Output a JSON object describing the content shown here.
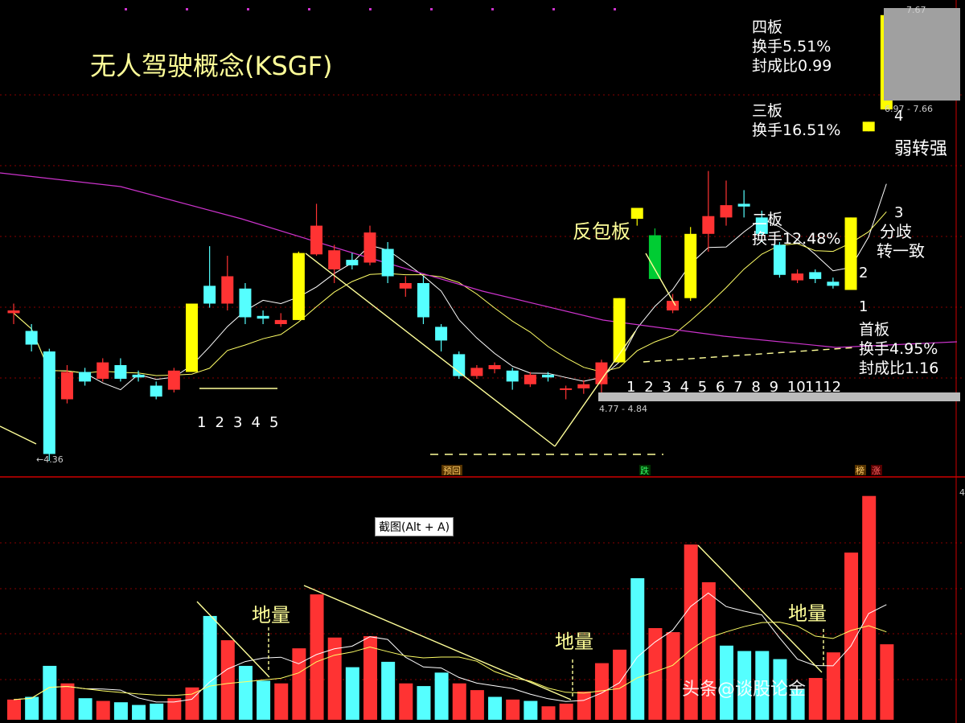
{
  "title": "无人驾驶概念(KSGF)",
  "tooltip": "截图(Alt + A)",
  "watermark": "头条@谈股论金",
  "price_labels": {
    "low": "←4.36",
    "range1": "4.77 - 4.84",
    "range2": "6.97 - 7.66",
    "top": "7.67"
  },
  "markers": {
    "yuhui": "预回",
    "die": "跌",
    "bang": "榜",
    "zhang": "涨"
  },
  "annotations": {
    "fanbaoban": "反包板",
    "ruozhuanqiang": "弱转强",
    "fenqi": "分歧",
    "zhuanyizhi": "转一致",
    "diliang1": "地量",
    "diliang2": "地量",
    "diliang3": "地量",
    "board4": [
      "四板",
      "换手5.51%",
      "封成比0.99"
    ],
    "board3": [
      "三板",
      "换手16.51%"
    ],
    "board2": [
      "二板",
      "换手12.48%"
    ],
    "board1": [
      "首板",
      "换手4.95%",
      "封成比1.16"
    ]
  },
  "left_counts": [
    "1",
    "2",
    "3",
    "4",
    "5"
  ],
  "mid_counts": [
    "1",
    "2",
    "3",
    "4",
    "5",
    "6",
    "7",
    "8",
    "9",
    "10",
    "11",
    "12"
  ],
  "board_counts": [
    "1",
    "2",
    "3",
    "4"
  ],
  "right_axis_label": "4",
  "colors": {
    "up": "#ff3333",
    "down": "#55ffff",
    "limit_up": "#ffff00",
    "limit_down": "#00cc33",
    "ma_white": "#ffffff",
    "ma_yellow": "#ffff66",
    "ma_magenta": "#cc33cc",
    "grid": "#880000",
    "annotation": "#ffff99"
  },
  "chart_data": {
    "type": "candlestick",
    "price_ylim": [
      4.3,
      7.7
    ],
    "candles": [
      {
        "o": 5.5,
        "c": 5.48,
        "h": 5.55,
        "l": 5.4,
        "k": "up"
      },
      {
        "o": 5.35,
        "c": 5.25,
        "h": 5.4,
        "l": 5.2,
        "k": "down"
      },
      {
        "o": 5.2,
        "c": 4.45,
        "h": 5.22,
        "l": 4.4,
        "k": "down"
      },
      {
        "o": 4.85,
        "c": 5.05,
        "h": 5.1,
        "l": 4.82,
        "k": "up"
      },
      {
        "o": 5.05,
        "c": 4.98,
        "h": 5.08,
        "l": 4.95,
        "k": "down"
      },
      {
        "o": 5.0,
        "c": 5.12,
        "h": 5.15,
        "l": 4.98,
        "k": "up"
      },
      {
        "o": 5.1,
        "c": 5.0,
        "h": 5.15,
        "l": 4.98,
        "k": "down"
      },
      {
        "o": 5.03,
        "c": 5.01,
        "h": 5.06,
        "l": 4.98,
        "k": "down"
      },
      {
        "o": 4.95,
        "c": 4.87,
        "h": 4.98,
        "l": 4.85,
        "k": "down"
      },
      {
        "o": 4.92,
        "c": 5.06,
        "h": 5.08,
        "l": 4.9,
        "k": "up"
      },
      {
        "o": 5.05,
        "c": 5.55,
        "h": 5.55,
        "l": 5.05,
        "k": "limit_up"
      },
      {
        "o": 5.55,
        "c": 5.68,
        "h": 5.97,
        "l": 5.52,
        "k": "down"
      },
      {
        "o": 5.55,
        "c": 5.75,
        "h": 5.9,
        "l": 5.5,
        "k": "up"
      },
      {
        "o": 5.66,
        "c": 5.45,
        "h": 5.7,
        "l": 5.4,
        "k": "down"
      },
      {
        "o": 5.46,
        "c": 5.44,
        "h": 5.5,
        "l": 5.4,
        "k": "down"
      },
      {
        "o": 5.4,
        "c": 5.43,
        "h": 5.48,
        "l": 5.38,
        "k": "up"
      },
      {
        "o": 5.43,
        "c": 5.92,
        "h": 5.93,
        "l": 5.43,
        "k": "limit_up"
      },
      {
        "o": 5.91,
        "c": 6.12,
        "h": 6.28,
        "l": 5.9,
        "k": "up"
      },
      {
        "o": 5.8,
        "c": 5.94,
        "h": 5.98,
        "l": 5.7,
        "k": "up"
      },
      {
        "o": 5.87,
        "c": 5.83,
        "h": 5.92,
        "l": 5.8,
        "k": "down"
      },
      {
        "o": 5.85,
        "c": 6.07,
        "h": 6.12,
        "l": 5.83,
        "k": "up"
      },
      {
        "o": 5.95,
        "c": 5.75,
        "h": 6.0,
        "l": 5.7,
        "k": "down"
      },
      {
        "o": 5.7,
        "c": 5.66,
        "h": 5.75,
        "l": 5.6,
        "k": "up"
      },
      {
        "o": 5.7,
        "c": 5.45,
        "h": 5.75,
        "l": 5.4,
        "k": "down"
      },
      {
        "o": 5.38,
        "c": 5.28,
        "h": 5.4,
        "l": 5.2,
        "k": "down"
      },
      {
        "o": 5.18,
        "c": 5.02,
        "h": 5.2,
        "l": 5.0,
        "k": "down"
      },
      {
        "o": 5.02,
        "c": 5.08,
        "h": 5.1,
        "l": 5.0,
        "k": "up"
      },
      {
        "o": 5.07,
        "c": 5.1,
        "h": 5.12,
        "l": 5.04,
        "k": "up"
      },
      {
        "o": 5.06,
        "c": 4.98,
        "h": 5.08,
        "l": 4.92,
        "k": "down"
      },
      {
        "o": 4.96,
        "c": 5.03,
        "h": 5.05,
        "l": 4.94,
        "k": "up"
      },
      {
        "o": 5.03,
        "c": 5.01,
        "h": 5.05,
        "l": 4.98,
        "k": "down"
      },
      {
        "o": 4.92,
        "c": 4.93,
        "h": 4.95,
        "l": 4.85,
        "k": "up"
      },
      {
        "o": 4.93,
        "c": 4.96,
        "h": 4.99,
        "l": 4.89,
        "k": "up"
      },
      {
        "o": 4.96,
        "c": 5.12,
        "h": 5.14,
        "l": 4.88,
        "k": "up"
      },
      {
        "o": 5.12,
        "c": 5.59,
        "h": 5.59,
        "l": 5.12,
        "k": "limit_up"
      },
      {
        "o": 6.17,
        "c": 6.25,
        "h": 6.25,
        "l": 6.12,
        "k": "limit_up"
      },
      {
        "o": 6.05,
        "c": 5.73,
        "h": 6.1,
        "l": 5.73,
        "k": "limit_down"
      },
      {
        "o": 5.5,
        "c": 5.57,
        "h": 5.62,
        "l": 5.48,
        "k": "up"
      },
      {
        "o": 5.59,
        "c": 6.06,
        "h": 6.11,
        "l": 5.57,
        "k": "limit_up"
      },
      {
        "o": 6.06,
        "c": 6.19,
        "h": 6.52,
        "l": 5.93,
        "k": "up"
      },
      {
        "o": 6.18,
        "c": 6.27,
        "h": 6.45,
        "l": 6.12,
        "k": "up"
      },
      {
        "o": 6.26,
        "c": 6.28,
        "h": 6.38,
        "l": 6.18,
        "k": "down"
      },
      {
        "o": 6.18,
        "c": 6.06,
        "h": 6.23,
        "l": 6.0,
        "k": "down"
      },
      {
        "o": 5.98,
        "c": 5.76,
        "h": 6.0,
        "l": 5.74,
        "k": "down"
      },
      {
        "o": 5.77,
        "c": 5.72,
        "h": 5.8,
        "l": 5.7,
        "k": "up"
      },
      {
        "o": 5.78,
        "c": 5.73,
        "h": 5.8,
        "l": 5.7,
        "k": "down"
      },
      {
        "o": 5.71,
        "c": 5.68,
        "h": 5.74,
        "l": 5.66,
        "k": "down"
      },
      {
        "o": 5.65,
        "c": 6.18,
        "h": 6.18,
        "l": 5.65,
        "k": "limit_up"
      },
      {
        "o": 6.81,
        "c": 6.88,
        "h": 6.88,
        "l": 6.81,
        "k": "limit_up"
      },
      {
        "o": 6.97,
        "c": 7.66,
        "h": 7.66,
        "l": 6.97,
        "k": "limit_up"
      }
    ],
    "volume": [
      {
        "v": 0.15,
        "k": "up"
      },
      {
        "v": 0.17,
        "k": "down"
      },
      {
        "v": 0.4,
        "k": "down"
      },
      {
        "v": 0.27,
        "k": "up"
      },
      {
        "v": 0.16,
        "k": "down"
      },
      {
        "v": 0.14,
        "k": "up"
      },
      {
        "v": 0.13,
        "k": "down"
      },
      {
        "v": 0.11,
        "k": "down"
      },
      {
        "v": 0.12,
        "k": "down"
      },
      {
        "v": 0.16,
        "k": "up"
      },
      {
        "v": 0.24,
        "k": "up"
      },
      {
        "v": 0.77,
        "k": "down"
      },
      {
        "v": 0.59,
        "k": "up"
      },
      {
        "v": 0.4,
        "k": "down"
      },
      {
        "v": 0.29,
        "k": "down"
      },
      {
        "v": 0.27,
        "k": "up"
      },
      {
        "v": 0.53,
        "k": "up"
      },
      {
        "v": 0.93,
        "k": "up"
      },
      {
        "v": 0.61,
        "k": "up"
      },
      {
        "v": 0.39,
        "k": "down"
      },
      {
        "v": 0.62,
        "k": "up"
      },
      {
        "v": 0.43,
        "k": "down"
      },
      {
        "v": 0.27,
        "k": "up"
      },
      {
        "v": 0.25,
        "k": "down"
      },
      {
        "v": 0.35,
        "k": "down"
      },
      {
        "v": 0.27,
        "k": "up"
      },
      {
        "v": 0.22,
        "k": "up"
      },
      {
        "v": 0.17,
        "k": "down"
      },
      {
        "v": 0.15,
        "k": "up"
      },
      {
        "v": 0.14,
        "k": "down"
      },
      {
        "v": 0.1,
        "k": "up"
      },
      {
        "v": 0.12,
        "k": "up"
      },
      {
        "v": 0.21,
        "k": "up"
      },
      {
        "v": 0.42,
        "k": "up"
      },
      {
        "v": 0.52,
        "k": "up"
      },
      {
        "v": 1.05,
        "k": "down"
      },
      {
        "v": 0.68,
        "k": "up"
      },
      {
        "v": 0.65,
        "k": "up"
      },
      {
        "v": 1.3,
        "k": "up"
      },
      {
        "v": 1.02,
        "k": "up"
      },
      {
        "v": 0.55,
        "k": "down"
      },
      {
        "v": 0.51,
        "k": "down"
      },
      {
        "v": 0.51,
        "k": "down"
      },
      {
        "v": 0.45,
        "k": "down"
      },
      {
        "v": 0.23,
        "k": "down"
      },
      {
        "v": 0.31,
        "k": "up"
      },
      {
        "v": 0.5,
        "k": "up"
      },
      {
        "v": 1.24,
        "k": "up"
      },
      {
        "v": 1.66,
        "k": "up"
      },
      {
        "v": 0.56,
        "k": "up"
      }
    ]
  }
}
